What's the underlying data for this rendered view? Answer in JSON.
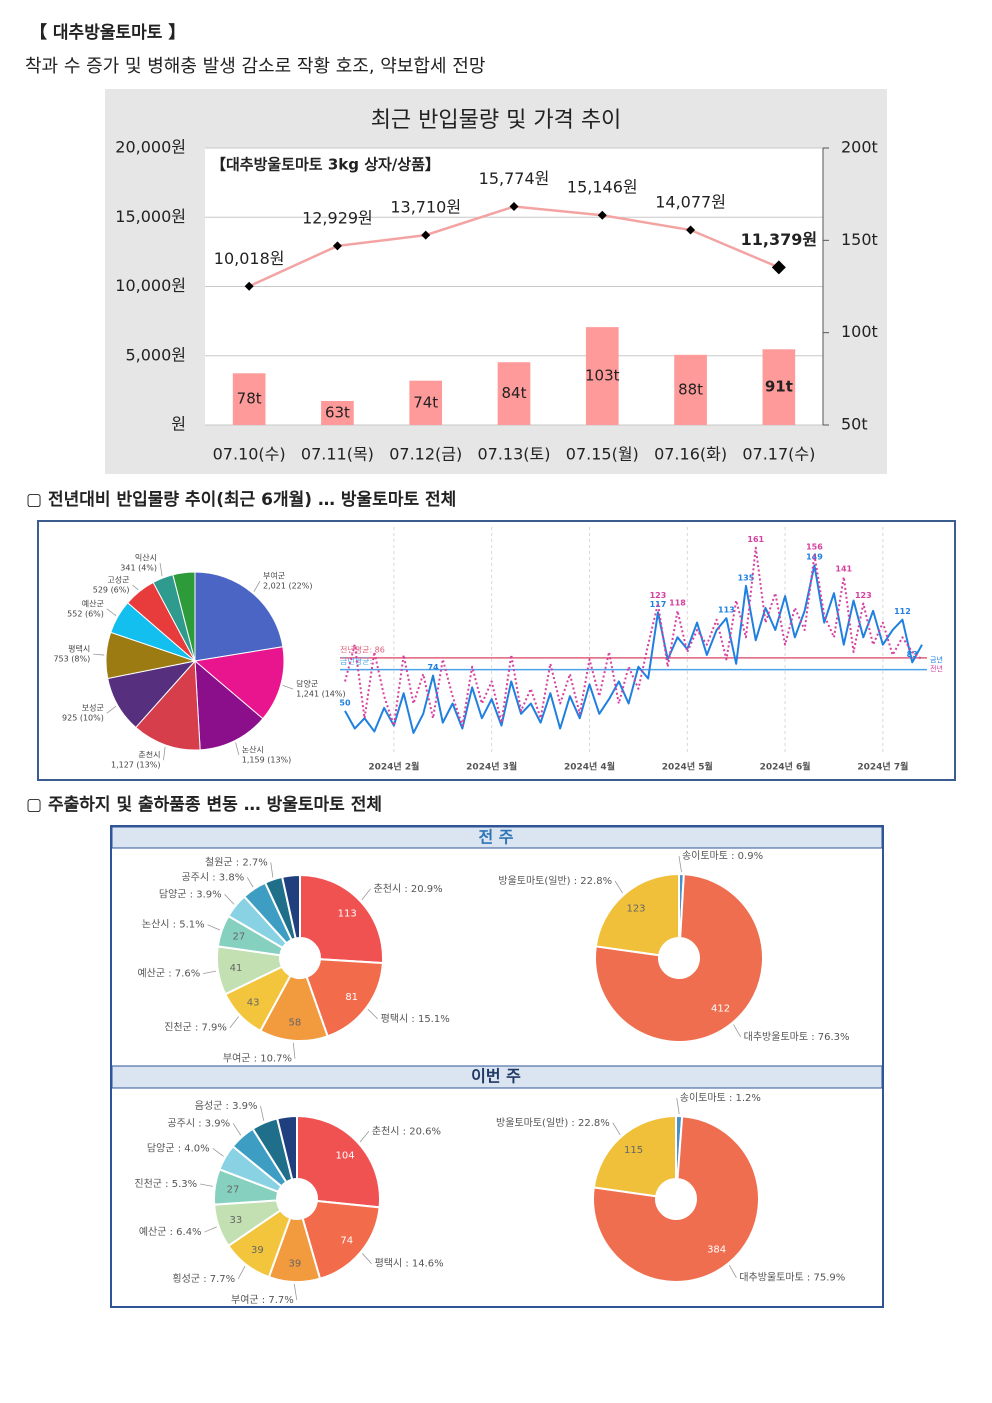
{
  "header": {
    "title": "【 대추방울토마토 】",
    "summary": "착과 수 증가 및 병해충 발생 감소로 작황 호조, 약보합세 전망"
  },
  "sections": [
    "▢ 전년대비 반입물량 추이(최근 6개월) … 방울토마토 전체",
    "▢ 주출하지 및 출하품종 변동 … 방울토마토 전체"
  ],
  "panels": [
    "전 주",
    "이번 주"
  ],
  "chart_data": [
    {
      "type": "combo",
      "title": "최근 반입물량 및 가격 추이",
      "subtitle": "【대추방울토마토 3kg 상자/상품】",
      "categories": [
        "07.10(수)",
        "07.11(목)",
        "07.12(금)",
        "07.13(토)",
        "07.15(월)",
        "07.16(화)",
        "07.17(수)"
      ],
      "series": [
        {
          "type": "bar",
          "axis": "y2",
          "color": "#ff9a9a",
          "values": [
            78,
            63,
            74,
            84,
            103,
            88,
            91
          ],
          "value_labels": [
            "78t",
            "63t",
            "74t",
            "84t",
            "103t",
            "88t",
            "91t"
          ]
        },
        {
          "type": "line",
          "color": "#f4a3a3",
          "marker_color": "#000000",
          "values": [
            10018,
            12929,
            13710,
            15774,
            15146,
            14077,
            11379
          ],
          "value_labels": [
            "10,018원",
            "12,929원",
            "13,710원",
            "15,774원",
            "15,146원",
            "14,077원",
            "11,379원"
          ]
        }
      ],
      "ylim": [
        0,
        20000
      ],
      "yticks": [
        {
          "value": 0,
          "label": "원"
        },
        {
          "value": 5000,
          "label": "5,000원"
        },
        {
          "value": 10000,
          "label": "10,000원"
        },
        {
          "value": 15000,
          "label": "15,000원"
        },
        {
          "value": 20000,
          "label": "20,000원"
        }
      ],
      "y2lim": [
        50,
        200
      ],
      "y2ticks": [
        {
          "value": 50,
          "label": "50t"
        },
        {
          "value": 100,
          "label": "100t"
        },
        {
          "value": 150,
          "label": "150t"
        },
        {
          "value": 200,
          "label": "200t"
        }
      ],
      "grid": true
    },
    {
      "type": "pie",
      "categories": [
        "부여군",
        "담양군",
        "논산시",
        "춘천시",
        "보성군",
        "평택시",
        "예산군",
        "고성군",
        "익산시",
        null
      ],
      "values": [
        2021,
        1241,
        1159,
        1127,
        925,
        753,
        552,
        529,
        341,
        360
      ],
      "value_labels": [
        "2,021 (22%)",
        "1,241 (14%)",
        "1,159 (13%)",
        "1,127 (13%)",
        "925 (10%)",
        "753 (8%)",
        "552 (6%)",
        "529 (6%)",
        "341 (4%)",
        null
      ],
      "colors": [
        "#4a65c4",
        "#e8158f",
        "#8b0e8a",
        "#d63e4c",
        "#56307f",
        "#9c7b12",
        "#13bfef",
        "#e83c3c",
        "#2e9b8e",
        "#2e9b3a"
      ]
    },
    {
      "type": "line",
      "categories": [
        null,
        null,
        null,
        null,
        null,
        "2024년 2월",
        null,
        null,
        null,
        null,
        null,
        null,
        null,
        null,
        null,
        "2024년 3월",
        null,
        null,
        null,
        null,
        null,
        null,
        null,
        null,
        null,
        "2024년 4월",
        null,
        null,
        null,
        null,
        null,
        null,
        null,
        null,
        null,
        "2024년 5월",
        null,
        null,
        null,
        null,
        null,
        null,
        null,
        null,
        null,
        "2024년 6월",
        null,
        null,
        null,
        null,
        null,
        null,
        null,
        null,
        null,
        "2024년 7월",
        null,
        null,
        null,
        null
      ],
      "series": [
        {
          "name": "금년",
          "color": "#1f80e0",
          "values": [
            50,
            38,
            45,
            36,
            52,
            40,
            62,
            35,
            48,
            74,
            42,
            55,
            38,
            66,
            45,
            58,
            40,
            70,
            48,
            55,
            42,
            62,
            38,
            60,
            45,
            68,
            48,
            58,
            70,
            55,
            80,
            72,
            117,
            85,
            100,
            92,
            110,
            88,
            105,
            113,
            82,
            135,
            98,
            120,
            105,
            128,
            100,
            118,
            149,
            110,
            130,
            95,
            125,
            100,
            118,
            95,
            105,
            112,
            83,
            95
          ],
          "value_labels": [
            "50",
            null,
            null,
            null,
            null,
            null,
            null,
            null,
            null,
            "74",
            null,
            null,
            null,
            null,
            null,
            null,
            null,
            null,
            null,
            null,
            null,
            null,
            null,
            null,
            null,
            null,
            null,
            null,
            null,
            null,
            null,
            null,
            "117",
            null,
            null,
            null,
            null,
            null,
            null,
            "113",
            null,
            "135",
            null,
            null,
            null,
            null,
            null,
            null,
            "149",
            null,
            null,
            null,
            null,
            null,
            null,
            null,
            null,
            "112",
            "83",
            null
          ]
        },
        {
          "name": "전년",
          "color": "#d6409f",
          "dash": "dotted",
          "values": [
            70,
            95,
            45,
            90,
            60,
            40,
            88,
            55,
            75,
            45,
            85,
            60,
            40,
            80,
            55,
            70,
            42,
            88,
            50,
            65,
            45,
            82,
            55,
            75,
            48,
            85,
            60,
            90,
            55,
            80,
            65,
            95,
            123,
            80,
            118,
            90,
            105,
            95,
            112,
            85,
            125,
            100,
            161,
            110,
            130,
            95,
            120,
            105,
            156,
            115,
            100,
            141,
            90,
            123,
            95,
            110,
            88,
            100,
            90,
            85
          ],
          "value_labels": [
            null,
            null,
            null,
            null,
            null,
            null,
            null,
            null,
            null,
            null,
            null,
            null,
            null,
            null,
            null,
            null,
            null,
            null,
            null,
            null,
            null,
            null,
            null,
            null,
            null,
            null,
            null,
            null,
            null,
            null,
            null,
            null,
            "123",
            null,
            "118",
            null,
            null,
            null,
            null,
            null,
            null,
            null,
            "161",
            null,
            null,
            null,
            null,
            null,
            "156",
            null,
            null,
            "141",
            null,
            "123",
            null,
            null,
            null,
            null,
            null,
            null
          ]
        }
      ],
      "ylim": [
        20,
        175
      ],
      "reference_lines": [
        {
          "label": "전년평균: 86",
          "value": 86,
          "color": "#e0607a"
        },
        {
          "label": "금년평균:",
          "value": 78,
          "color": "#4da3e8"
        }
      ],
      "grid": true
    },
    {
      "type": "donut",
      "categories": [
        "춘천시 : 20.9%",
        "평택시 : 15.1%",
        "부여군 : 10.7%",
        "진천군 : 7.9%",
        "예산군 : 7.6%",
        "논산시 : 5.1%",
        "담양군 : 3.9%",
        "공주시 : 3.8%",
        "철원군 : 2.7%",
        null
      ],
      "values": [
        113,
        81,
        58,
        43,
        41,
        27,
        21,
        21,
        15,
        15
      ],
      "colors": [
        "#f05252",
        "#f26b4b",
        "#f19a3e",
        "#f2c53d",
        "#c2e0b2",
        "#86d0bf",
        "#88d2e4",
        "#3d9dc2",
        "#1f6f8b",
        "#1f3f7f"
      ]
    },
    {
      "type": "donut",
      "categories": [
        "송이토마토 : 0.9%",
        "대추방울토마토 : 76.3%",
        "방울토마토(일반) : 22.8%"
      ],
      "values": [
        5,
        412,
        123
      ],
      "colors": [
        "#4a90c8",
        "#f06e50",
        "#f0c03a"
      ]
    },
    {
      "type": "donut",
      "categories": [
        "춘천시 : 20.6%",
        "평택시 : 14.6%",
        "부여군 : 7.7%",
        "횡성군 : 7.7%",
        "예산군 : 6.4%",
        "진천군 : 5.3%",
        "담양군 : 4.0%",
        "공주시 : 3.9%",
        "음성군 : 3.9%",
        null
      ],
      "values": [
        104,
        74,
        39,
        39,
        33,
        27,
        20,
        20,
        20,
        15
      ],
      "colors": [
        "#f05252",
        "#f26b4b",
        "#f19a3e",
        "#f2c53d",
        "#c2e0b2",
        "#86d0bf",
        "#88d2e4",
        "#3d9dc2",
        "#1f6f8b",
        "#1f3f7f"
      ]
    },
    {
      "type": "donut",
      "categories": [
        "송이토마토 : 1.2%",
        "대추방울토마토 : 75.9%",
        "방울토마토(일반) : 22.8%"
      ],
      "values": [
        6,
        384,
        115
      ],
      "colors": [
        "#4a90c8",
        "#f06e50",
        "#f0c03a"
      ]
    }
  ]
}
